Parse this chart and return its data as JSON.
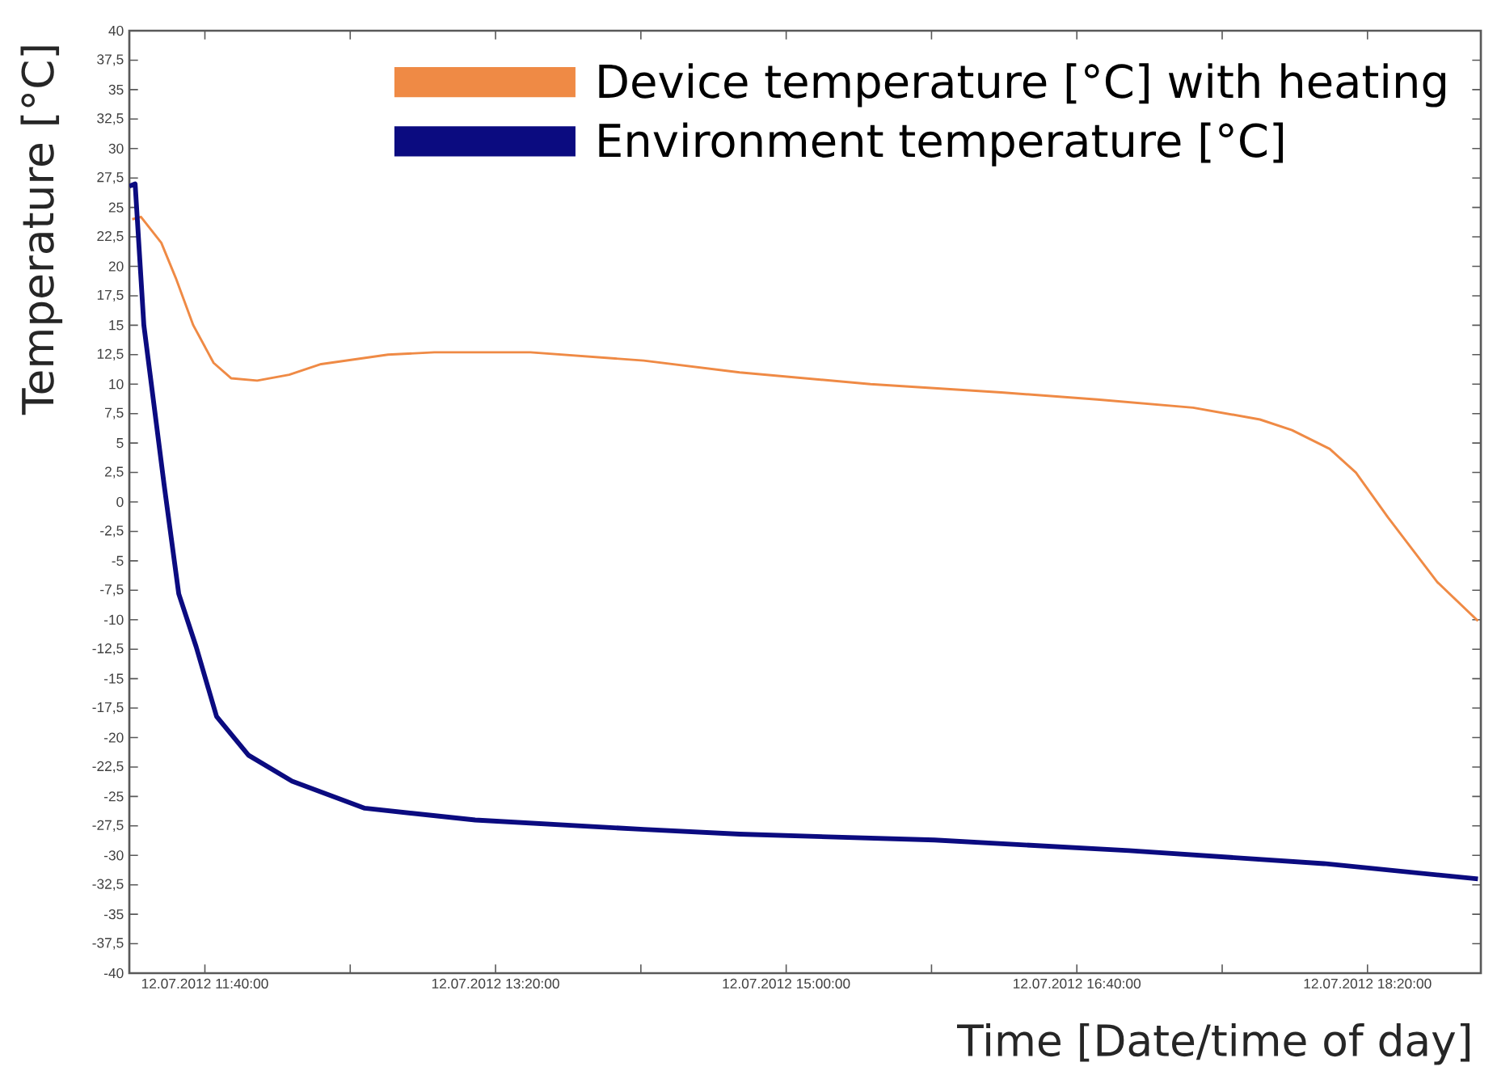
{
  "chart_data": {
    "type": "line",
    "xlabel": "Time [Date/time of day]",
    "ylabel": "Temperature [°C]",
    "legend": "top right",
    "xlim": [
      "2012-07-12T11:14",
      "2012-07-12T18:59"
    ],
    "ylim": [
      -40,
      40
    ],
    "xticks": [
      {
        "value": "2012-07-12T11:40",
        "label": "12.07.2012 11:40:00"
      },
      {
        "value": "2012-07-12T12:30",
        "label": null
      },
      {
        "value": "2012-07-12T13:20",
        "label": "12.07.2012 13:20:00"
      },
      {
        "value": "2012-07-12T14:10",
        "label": null
      },
      {
        "value": "2012-07-12T15:00",
        "label": "12.07.2012 15:00:00"
      },
      {
        "value": "2012-07-12T15:50",
        "label": null
      },
      {
        "value": "2012-07-12T16:40",
        "label": "12.07.2012 16:40:00"
      },
      {
        "value": "2012-07-12T17:30",
        "label": null
      },
      {
        "value": "2012-07-12T18:20",
        "label": "12.07.2012 18:20:00"
      }
    ],
    "yticks": [
      40,
      {
        "value": 37.5,
        "label": "37,5"
      },
      35,
      {
        "value": 32.5,
        "label": "32,5"
      },
      30,
      {
        "value": 27.5,
        "label": "27,5"
      },
      25,
      {
        "value": 22.5,
        "label": "22,5"
      },
      20,
      {
        "value": 17.5,
        "label": "17,5"
      },
      15,
      {
        "value": 12.5,
        "label": "12,5"
      },
      10,
      {
        "value": 7.5,
        "label": "7,5"
      },
      5,
      {
        "value": 2.5,
        "label": "2,5"
      },
      0,
      {
        "value": -2.5,
        "label": "-2,5"
      },
      -5,
      {
        "value": -7.5,
        "label": "-7,5"
      },
      -10,
      {
        "value": -12.5,
        "label": "-12,5"
      },
      -15,
      {
        "value": -17.5,
        "label": "-17,5"
      },
      -20,
      {
        "value": -22.5,
        "label": "-22,5"
      },
      -25,
      {
        "value": -27.5,
        "label": "-27,5"
      },
      -30,
      {
        "value": -32.5,
        "label": "-32,5"
      },
      -35,
      {
        "value": -37.5,
        "label": "-37,5"
      },
      -40
    ],
    "series": [
      {
        "name": "Device temperature [°C] with heating",
        "color": "#ef8a45",
        "x": [
          "2012-07-12T11:15",
          "2012-07-12T11:18",
          "2012-07-12T11:25",
          "2012-07-12T11:30",
          "2012-07-12T11:36",
          "2012-07-12T11:43",
          "2012-07-12T11:49",
          "2012-07-12T11:58",
          "2012-07-12T12:09",
          "2012-07-12T12:20",
          "2012-07-12T12:43",
          "2012-07-12T12:59",
          "2012-07-12T13:32",
          "2012-07-12T14:11",
          "2012-07-12T14:44",
          "2012-07-12T15:29",
          "2012-07-12T16:14",
          "2012-07-12T16:47",
          "2012-07-12T17:20",
          "2012-07-12T17:43",
          "2012-07-12T17:54",
          "2012-07-12T18:07",
          "2012-07-12T18:16",
          "2012-07-12T18:27",
          "2012-07-12T18:44",
          "2012-07-12T18:58"
        ],
        "values": [
          24.0,
          24.2,
          22.0,
          19.0,
          15.0,
          11.8,
          10.5,
          10.3,
          10.8,
          11.7,
          12.5,
          12.7,
          12.7,
          12.0,
          11.0,
          10.0,
          9.3,
          8.7,
          8.0,
          7.0,
          6.1,
          4.5,
          2.5,
          -1.3,
          -6.8,
          -10.1
        ]
      },
      {
        "name": "Environment temperature [°C]",
        "color": "#0b0b80",
        "x": [
          "2012-07-12T11:14",
          "2012-07-12T11:16",
          "2012-07-12T11:19",
          "2012-07-12T11:26",
          "2012-07-12T11:31",
          "2012-07-12T11:37",
          "2012-07-12T11:44",
          "2012-07-12T11:55",
          "2012-07-12T12:10",
          "2012-07-12T12:35",
          "2012-07-12T13:13",
          "2012-07-12T14:11",
          "2012-07-12T14:44",
          "2012-07-12T15:51",
          "2012-07-12T16:58",
          "2012-07-12T18:05",
          "2012-07-12T18:58"
        ],
        "values": [
          26.8,
          27.0,
          15.0,
          1.4,
          -7.8,
          -12.3,
          -18.2,
          -21.5,
          -23.7,
          -26.0,
          -27.0,
          -27.8,
          -28.2,
          -28.7,
          -29.6,
          -30.7,
          -32.0
        ]
      }
    ]
  }
}
